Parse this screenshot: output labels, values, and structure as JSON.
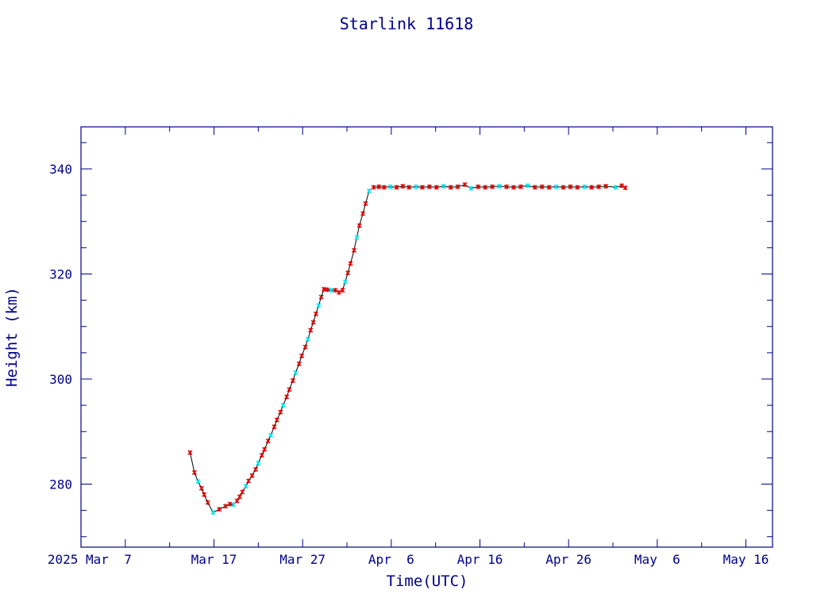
{
  "chart_data": {
    "type": "scatter",
    "title": "Starlink 11618",
    "xlabel": "Time(UTC)",
    "ylabel": "Height (km)",
    "x_start_date": "2025-03-02",
    "xlim_days": [
      0,
      78
    ],
    "ylim": [
      268,
      348
    ],
    "x_ticks": [
      {
        "day": 5,
        "label": "2025 Mar  7"
      },
      {
        "day": 15,
        "label": "Mar 17"
      },
      {
        "day": 25,
        "label": "Mar 27"
      },
      {
        "day": 35,
        "label": "Apr  6"
      },
      {
        "day": 45,
        "label": "Apr 16"
      },
      {
        "day": 55,
        "label": "Apr 26"
      },
      {
        "day": 65,
        "label": "May  6"
      },
      {
        "day": 75,
        "label": "May 16"
      }
    ],
    "y_ticks": [
      280,
      300,
      320,
      340
    ],
    "grid": false,
    "colors": {
      "axis": "#00008b",
      "line": "#000000",
      "marker_primary": "#dd0000",
      "marker_secondary": "#00e5ee"
    },
    "series": [
      {
        "values": [
          [
            12.3,
            286.0
          ],
          [
            12.8,
            282.2
          ],
          [
            13.2,
            280.5
          ],
          [
            13.6,
            279.2
          ],
          [
            13.9,
            278.0
          ],
          [
            14.3,
            276.5
          ],
          [
            14.9,
            274.6
          ],
          [
            15.6,
            275.2
          ],
          [
            16.3,
            275.8
          ],
          [
            16.8,
            276.2
          ],
          [
            17.2,
            276.1
          ],
          [
            17.6,
            276.8
          ],
          [
            17.9,
            277.6
          ],
          [
            18.2,
            278.5
          ],
          [
            18.6,
            279.6
          ],
          [
            18.9,
            280.6
          ],
          [
            19.3,
            281.6
          ],
          [
            19.7,
            282.8
          ],
          [
            20.0,
            284.0
          ],
          [
            20.4,
            285.5
          ],
          [
            20.7,
            286.6
          ],
          [
            21.1,
            288.2
          ],
          [
            21.4,
            289.3
          ],
          [
            21.8,
            290.9
          ],
          [
            22.1,
            292.2
          ],
          [
            22.5,
            293.7
          ],
          [
            22.8,
            295.0
          ],
          [
            23.2,
            296.6
          ],
          [
            23.5,
            298.0
          ],
          [
            23.9,
            299.7
          ],
          [
            24.2,
            301.2
          ],
          [
            24.6,
            302.9
          ],
          [
            24.9,
            304.4
          ],
          [
            25.3,
            306.1
          ],
          [
            25.6,
            307.6
          ],
          [
            25.9,
            309.3
          ],
          [
            26.2,
            310.8
          ],
          [
            26.5,
            312.4
          ],
          [
            26.8,
            314.0
          ],
          [
            27.1,
            315.6
          ],
          [
            27.4,
            317.1
          ],
          [
            27.8,
            317.0
          ],
          [
            28.2,
            316.9
          ],
          [
            28.7,
            316.9
          ],
          [
            29.1,
            316.5
          ],
          [
            29.5,
            316.9
          ],
          [
            29.8,
            318.5
          ],
          [
            30.1,
            320.2
          ],
          [
            30.4,
            322.0
          ],
          [
            30.8,
            324.5
          ],
          [
            31.1,
            326.9
          ],
          [
            31.4,
            329.2
          ],
          [
            31.8,
            331.5
          ],
          [
            32.1,
            333.4
          ],
          [
            32.5,
            335.8
          ],
          [
            33.0,
            336.5
          ],
          [
            33.6,
            336.6
          ],
          [
            34.2,
            336.5
          ],
          [
            34.9,
            336.6
          ],
          [
            35.6,
            336.5
          ],
          [
            36.3,
            336.7
          ],
          [
            37.0,
            336.5
          ],
          [
            37.8,
            336.6
          ],
          [
            38.5,
            336.5
          ],
          [
            39.3,
            336.6
          ],
          [
            40.1,
            336.5
          ],
          [
            40.9,
            336.7
          ],
          [
            41.7,
            336.5
          ],
          [
            42.5,
            336.6
          ],
          [
            43.3,
            337.0
          ],
          [
            44.0,
            336.3
          ],
          [
            44.8,
            336.6
          ],
          [
            45.6,
            336.5
          ],
          [
            46.4,
            336.6
          ],
          [
            47.2,
            336.7
          ],
          [
            48.0,
            336.6
          ],
          [
            48.8,
            336.5
          ],
          [
            49.6,
            336.6
          ],
          [
            50.4,
            336.8
          ],
          [
            51.2,
            336.5
          ],
          [
            52.0,
            336.6
          ],
          [
            52.8,
            336.5
          ],
          [
            53.6,
            336.6
          ],
          [
            54.4,
            336.5
          ],
          [
            55.2,
            336.6
          ],
          [
            56.0,
            336.5
          ],
          [
            56.8,
            336.6
          ],
          [
            57.6,
            336.5
          ],
          [
            58.4,
            336.6
          ],
          [
            59.2,
            336.7
          ],
          [
            60.3,
            336.5
          ],
          [
            61.0,
            336.8
          ],
          [
            61.4,
            336.4
          ]
        ]
      }
    ]
  }
}
